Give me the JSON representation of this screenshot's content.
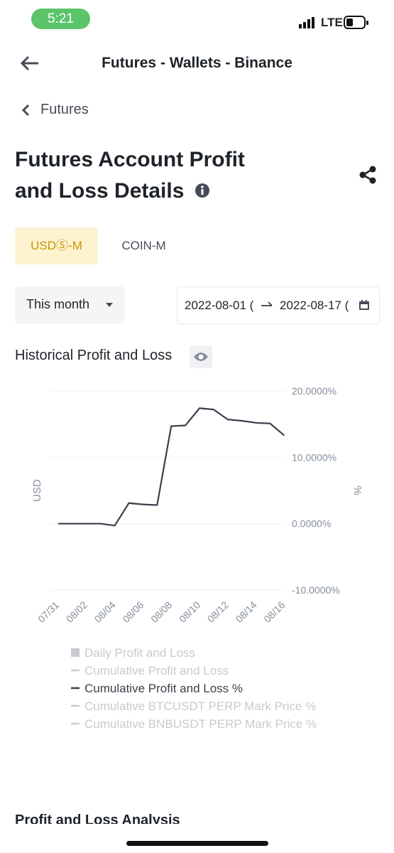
{
  "status_bar": {
    "time": "5:21",
    "network": "LTE"
  },
  "header": {
    "title": "Futures - Wallets - Binance"
  },
  "breadcrumb": "Futures",
  "page_title": "Futures Account Profit and Loss Details",
  "tabs": [
    "USDⓈ-M",
    "COIN-M"
  ],
  "filter": {
    "period": "This month",
    "start_date": "2022-08-01 (",
    "end_date": "2022-08-17 ("
  },
  "section_title": "Historical Profit and Loss",
  "chart_data": {
    "type": "line",
    "y_label": "USD",
    "y2_label": "%",
    "categories": [
      "07/31",
      null,
      "08/02",
      null,
      "08/04",
      null,
      "08/06",
      null,
      "08/08",
      null,
      "08/10",
      null,
      "08/12",
      null,
      "08/14",
      null,
      "08/16"
    ],
    "series": [
      {
        "color": "#3b3f4a",
        "axis": "y2",
        "values": [
          0.0,
          0.0,
          0.0,
          0.0,
          -0.3,
          3.1,
          2.9,
          2.8,
          14.7,
          14.8,
          17.4,
          17.2,
          15.7,
          15.5,
          15.2,
          15.1,
          13.3
        ]
      }
    ],
    "y2lim": [
      -10,
      20
    ],
    "y2ticks": [
      {
        "value": 20,
        "label": "20.0000%"
      },
      {
        "value": 10,
        "label": "10.0000%"
      },
      {
        "value": 0,
        "label": "0.0000%"
      },
      {
        "value": -10,
        "label": "-10.0000%"
      }
    ],
    "grid": true,
    "legend": [
      {
        "name": "Daily Profit and Loss",
        "color": "#c8cacf",
        "shape": "square"
      },
      {
        "name": "Cumulative Profit and Loss",
        "color": "#c8cacf",
        "shape": "line"
      },
      {
        "name": "Cumulative Profit and Loss %",
        "color": "#3b3f4a",
        "shape": "line"
      },
      {
        "name": "Cumulative BTCUSDT PERP Mark Price %",
        "color": "#c8cacf",
        "shape": "line"
      },
      {
        "name": "Cumulative BNBUSDT PERP Mark Price %",
        "color": "#c8cacf",
        "shape": "line"
      }
    ]
  },
  "next_section_title": "Profit and Loss Analysis"
}
